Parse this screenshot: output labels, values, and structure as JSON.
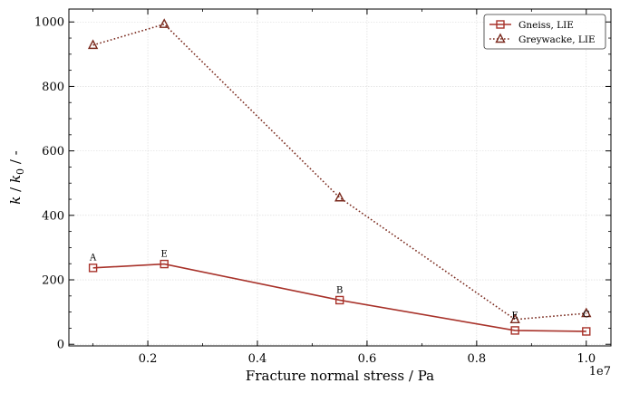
{
  "chart_data": {
    "type": "line",
    "xlabel": "Fracture normal stress / Pa",
    "ylabel": "k / k₀ / -",
    "ylabel_parts": {
      "k": "k",
      "slash": " / ",
      "k0": "k",
      "sub": "0",
      "unit": " / -"
    },
    "x_offset_label": "1e7",
    "xlim": [
      560000,
      10450000
    ],
    "ylim": [
      -5,
      1040
    ],
    "x_ticks": [
      2000000,
      4000000,
      6000000,
      8000000,
      10000000
    ],
    "x_tick_labels": [
      "0.2",
      "0.4",
      "0.6",
      "0.8",
      "1.0"
    ],
    "y_ticks": [
      0,
      200,
      400,
      600,
      800,
      1000
    ],
    "y_tick_labels": [
      "0",
      "200",
      "400",
      "600",
      "800",
      "1000"
    ],
    "grid": true,
    "legend_position": "top-right",
    "series": [
      {
        "name": "Gneiss, LIE",
        "marker": "square",
        "line_style": "solid",
        "color": "#a8322a",
        "x": [
          1000000,
          2300000,
          5500000,
          8700000,
          10000000
        ],
        "y": [
          237,
          249,
          137,
          43,
          40
        ]
      },
      {
        "name": "Greywacke, LIE",
        "marker": "triangle",
        "line_style": "dotted",
        "color": "#7a2a1e",
        "x": [
          1000000,
          2300000,
          5500000,
          8700000,
          10000000
        ],
        "y": [
          928,
          993,
          455,
          77,
          96
        ]
      }
    ],
    "annotations": [
      {
        "text": "A",
        "x": 1000000,
        "y": 260
      },
      {
        "text": "E",
        "x": 2300000,
        "y": 272
      },
      {
        "text": "B",
        "x": 5500000,
        "y": 160
      },
      {
        "text": "E",
        "x": 8700000,
        "y": 80
      },
      {
        "text": "C",
        "x": 10000000,
        "y": 83
      }
    ]
  }
}
